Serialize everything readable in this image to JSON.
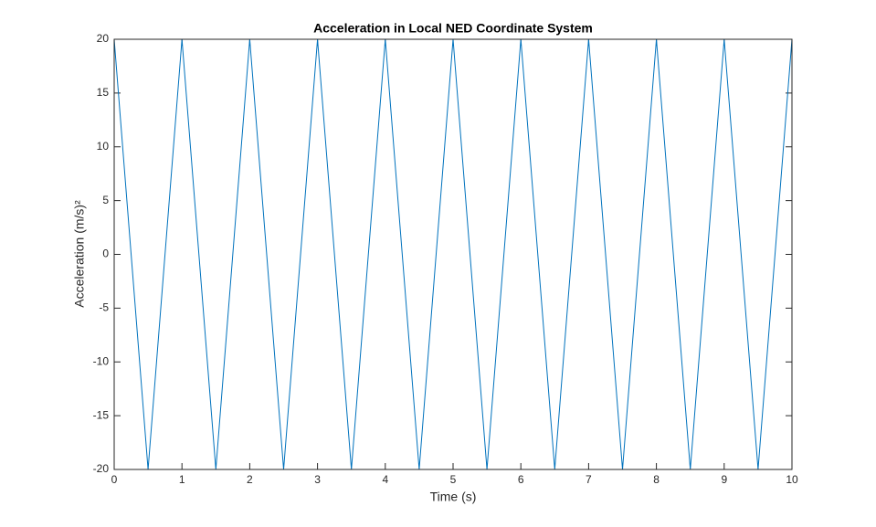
{
  "chart_data": {
    "type": "line",
    "title": "Acceleration in Local NED Coordinate System",
    "xlabel": "Time (s)",
    "ylabel": "Acceleration (m/s)²",
    "x": [
      0,
      0.5,
      1,
      1.5,
      2,
      2.5,
      3,
      3.5,
      4,
      4.5,
      5,
      5.5,
      6,
      6.5,
      7,
      7.5,
      8,
      8.5,
      9,
      9.5,
      10
    ],
    "values": [
      20,
      -20,
      20,
      -20,
      20,
      -20,
      20,
      -20,
      20,
      -20,
      20,
      -20,
      20,
      -20,
      20,
      -20,
      20,
      -20,
      20,
      -20,
      20
    ],
    "color": "#0072bd",
    "xlim": [
      0,
      10
    ],
    "xticks": [
      0,
      1,
      2,
      3,
      4,
      5,
      6,
      7,
      8,
      9,
      10
    ],
    "ylim": [
      -20,
      20
    ],
    "yticks": [
      -20,
      -15,
      -10,
      -5,
      0,
      5,
      10,
      15,
      20
    ],
    "grid": false
  }
}
